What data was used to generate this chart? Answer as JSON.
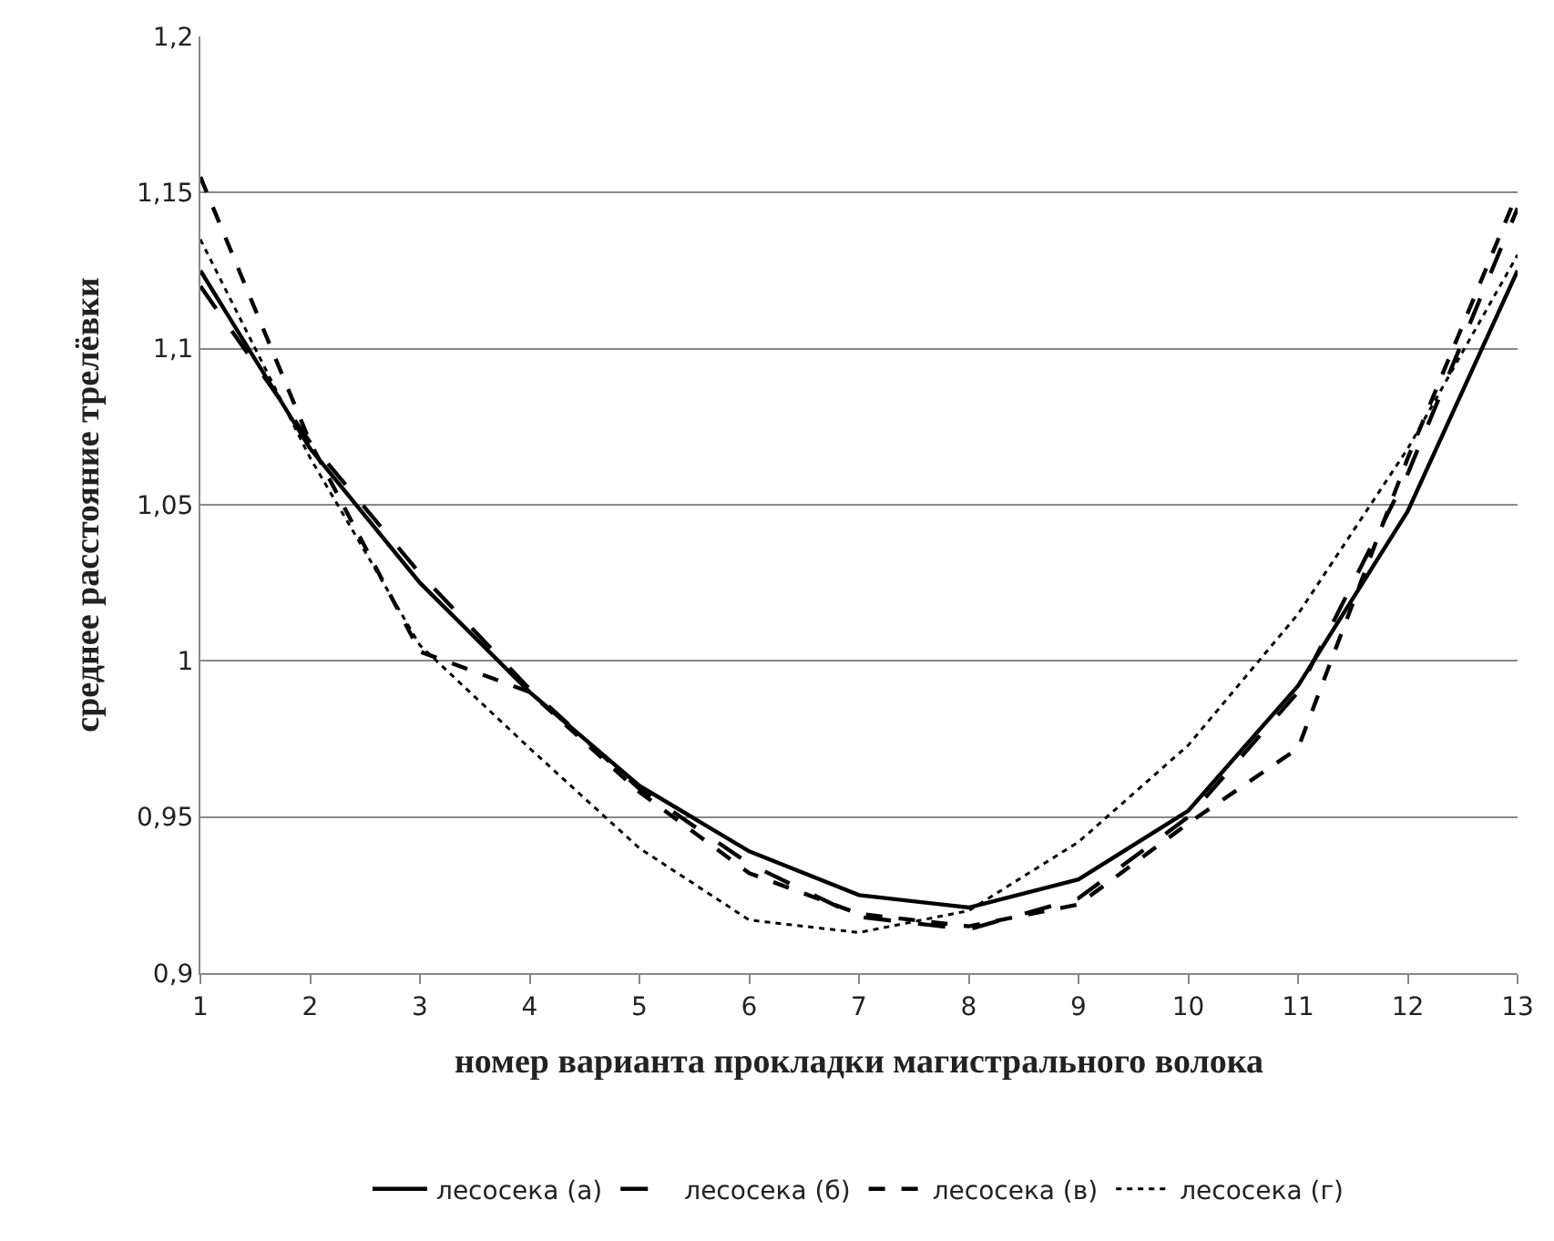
{
  "chart_data": {
    "type": "line",
    "xlabel": "номер варианта прокладки магистрального волока",
    "ylabel": "среднее расстояние трелёвки",
    "x": [
      1,
      2,
      3,
      4,
      5,
      6,
      7,
      8,
      9,
      10,
      11,
      12,
      13
    ],
    "xlim": [
      1,
      13
    ],
    "xticks": [
      1,
      2,
      3,
      4,
      5,
      6,
      7,
      8,
      9,
      10,
      11,
      12,
      13
    ],
    "ylim": [
      0.9,
      1.2
    ],
    "yticks": [
      {
        "value": 0.9,
        "label": "0,9"
      },
      {
        "value": 0.95,
        "label": "0,95"
      },
      {
        "value": 1,
        "label": "1"
      },
      {
        "value": 1.05,
        "label": "1,05"
      },
      {
        "value": 1.1,
        "label": "1,1"
      },
      {
        "value": 1.15,
        "label": "1,15"
      },
      {
        "value": 1.2,
        "label": "1,2"
      }
    ],
    "grid": "y",
    "legend": "bottom",
    "marker": "none",
    "series": [
      {
        "name": "лесосека (а)",
        "color": "#000000",
        "line_style": "solid",
        "values": [
          1.125,
          1.068,
          1.025,
          0.99,
          0.96,
          0.939,
          0.925,
          0.921,
          0.93,
          0.952,
          0.992,
          1.048,
          1.125
        ]
      },
      {
        "name": "лесосека (б)",
        "color": "#000000",
        "line_style": "longdash",
        "values": [
          1.12,
          1.07,
          1.028,
          0.991,
          0.959,
          0.935,
          0.918,
          0.914,
          0.924,
          0.95,
          0.99,
          1.06,
          1.145
        ]
      },
      {
        "name": "лесосека (в)",
        "color": "#000000",
        "line_style": "dashed",
        "values": [
          1.155,
          1.07,
          1.003,
          0.99,
          0.958,
          0.932,
          0.919,
          0.915,
          0.922,
          0.948,
          0.972,
          1.065,
          1.15
        ]
      },
      {
        "name": "лесосека (г)",
        "color": "#000000",
        "line_style": "dotted",
        "values": [
          1.135,
          1.065,
          1.005,
          0.972,
          0.94,
          0.917,
          0.913,
          0.92,
          0.942,
          0.973,
          1.015,
          1.068,
          1.13
        ]
      }
    ]
  }
}
